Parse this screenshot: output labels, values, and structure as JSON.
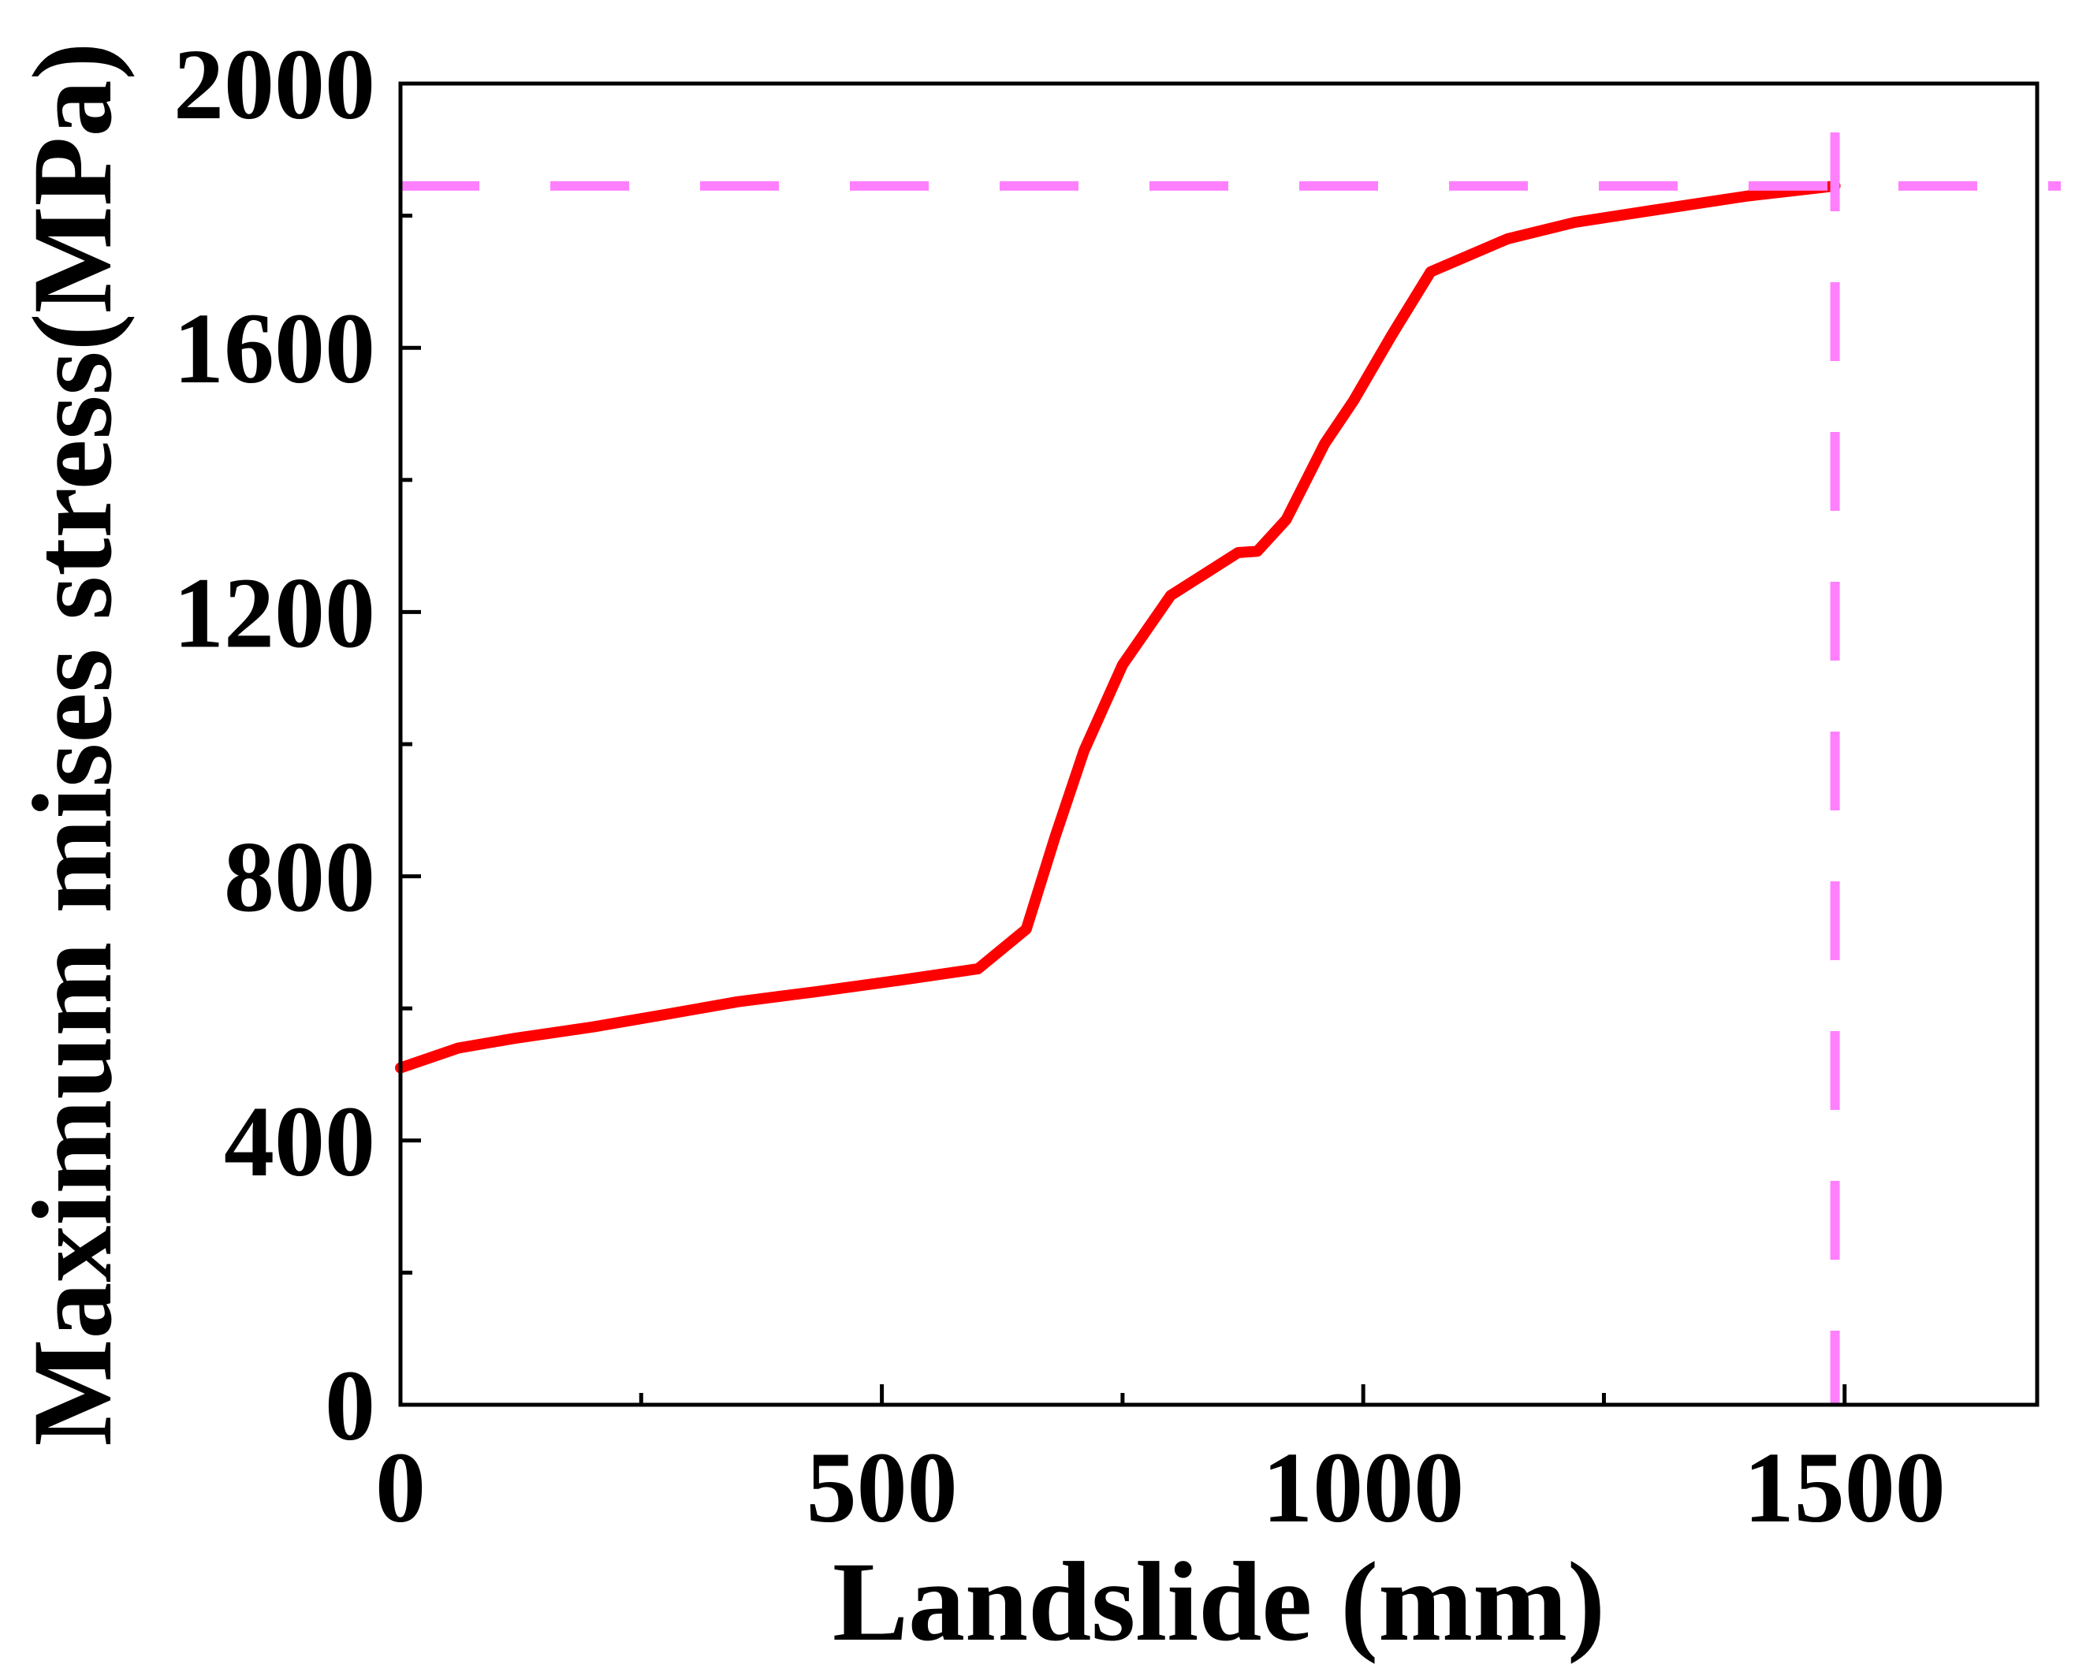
{
  "chart_data": {
    "type": "line",
    "title": "",
    "xlabel": "Landslide (mm)",
    "ylabel": "Maximum mises stress(MPa)",
    "xlim": [
      0,
      1700
    ],
    "ylim": [
      0,
      2000
    ],
    "x_ticks": [
      0,
      500,
      1000,
      1500
    ],
    "x_tick_labels": [
      "0",
      "500",
      "1000",
      "1500"
    ],
    "x_minor_ticks": [
      250,
      750,
      1250
    ],
    "y_ticks": [
      0,
      400,
      800,
      1200,
      1600,
      2000
    ],
    "y_tick_labels": [
      "0",
      "400",
      "800",
      "1200",
      "1600",
      "2000"
    ],
    "y_minor_ticks": [
      200,
      600,
      1000,
      1400,
      1800
    ],
    "grid": false,
    "series": [
      {
        "name": "Maximum mises stress",
        "color": "#ff0000",
        "x": [
          0,
          60,
          120,
          200,
          280,
          350,
          430,
          520,
          600,
          650,
          680,
          710,
          750,
          800,
          870,
          890,
          920,
          960,
          990,
          1030,
          1070,
          1150,
          1220,
          1300,
          1400,
          1490
        ],
        "y": [
          510,
          540,
          555,
          572,
          592,
          610,
          625,
          643,
          660,
          720,
          860,
          990,
          1120,
          1225,
          1290,
          1292,
          1340,
          1455,
          1520,
          1620,
          1715,
          1765,
          1790,
          1808,
          1830,
          1845
        ]
      }
    ],
    "reference_lines": [
      {
        "name": "horizontal-reference",
        "orientation": "horizontal",
        "value": 1845,
        "color": "#ff80ff",
        "style": "dashed"
      },
      {
        "name": "vertical-reference",
        "orientation": "vertical",
        "value": 1490,
        "color": "#ff80ff",
        "style": "dashed"
      }
    ]
  }
}
